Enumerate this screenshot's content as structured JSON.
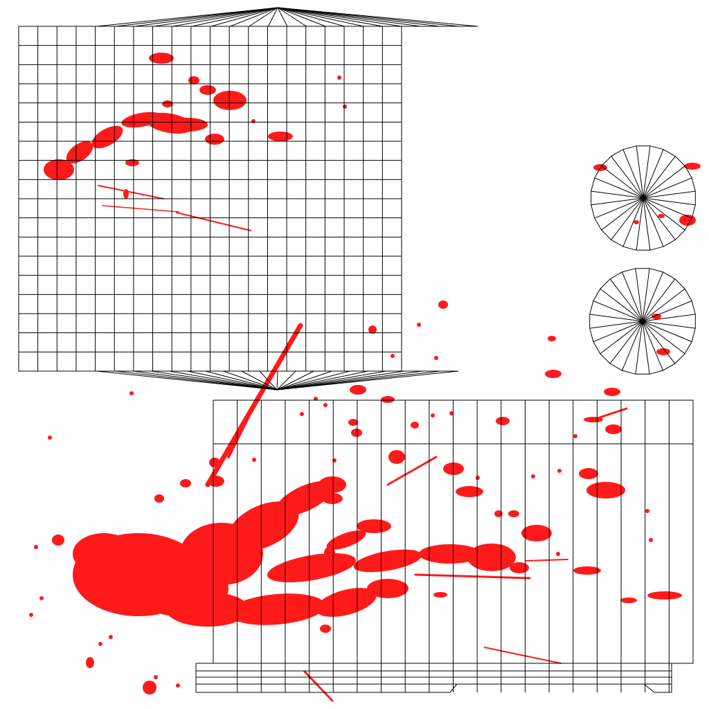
{
  "texture": {
    "description_visible_text": "",
    "colors": {
      "background": "#ffffff",
      "wireframe": "#000000",
      "splatter": "#ff1a1a"
    },
    "islands": [
      {
        "kind": "cylinder-side-grid",
        "name": "upper-grid-with-caps"
      },
      {
        "kind": "cylinder-side-grid",
        "name": "lower-strip-grid"
      },
      {
        "kind": "disc",
        "name": "disc-top",
        "segments": 24
      },
      {
        "kind": "disc",
        "name": "disc-bottom",
        "segments": 24
      }
    ]
  }
}
